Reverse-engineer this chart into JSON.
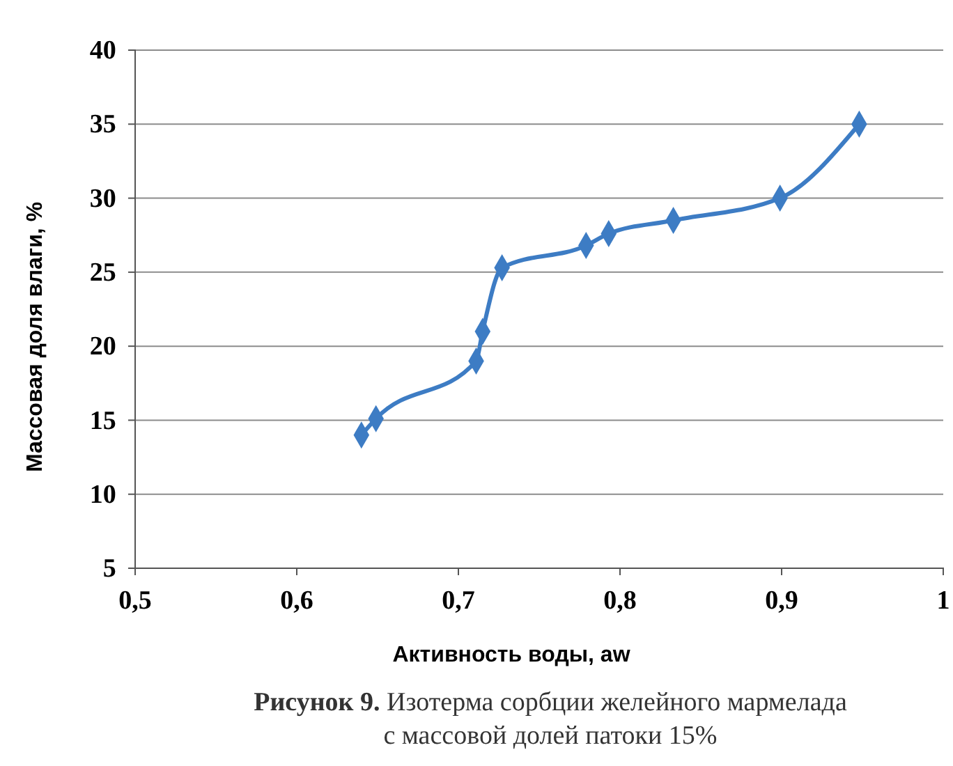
{
  "chart_data": {
    "type": "line",
    "xlabel": "Активность воды, aw",
    "ylabel": "Массовая доля влаги, %",
    "x": [
      0.64,
      0.649,
      0.711,
      0.715,
      0.727,
      0.779,
      0.793,
      0.833,
      0.899,
      0.948
    ],
    "series": [
      {
        "color": "#3d7cc4",
        "values": [
          14.0,
          15.1,
          19.0,
          21.0,
          25.3,
          26.8,
          27.6,
          28.5,
          30.0,
          35.0
        ]
      }
    ],
    "xlim": [
      0.5,
      1
    ],
    "xticks": [
      {
        "value": 0.5,
        "label": "0,5"
      },
      {
        "value": 0.6,
        "label": "0,6"
      },
      {
        "value": 0.7,
        "label": "0,7"
      },
      {
        "value": 0.8,
        "label": "0,8"
      },
      {
        "value": 0.9,
        "label": "0,9"
      },
      1
    ],
    "ylim": [
      5,
      40
    ],
    "yticks": [
      5,
      10,
      15,
      20,
      25,
      30,
      35,
      40
    ],
    "grid": "y",
    "marker": "diamond",
    "line_style": "solid",
    "annotations": [
      "Рисунок 9. Изотерма сорбции желейного мармелада\nс массовой долей патоки 15%"
    ]
  }
}
